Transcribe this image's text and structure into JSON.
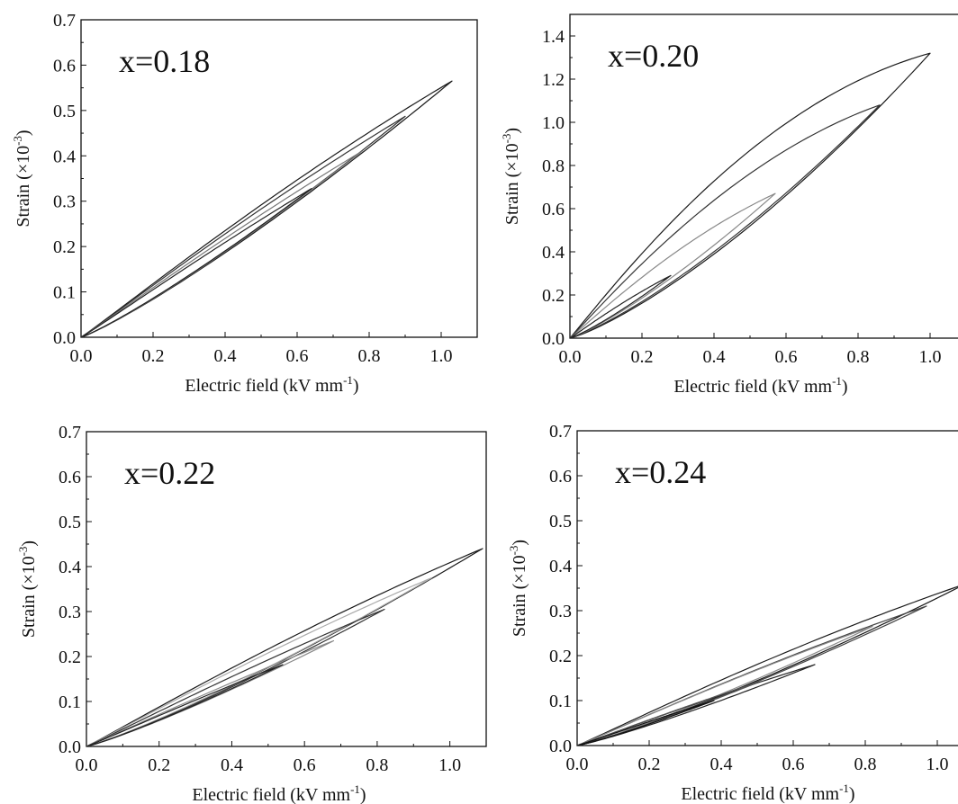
{
  "figure": {
    "xlabel": "Electric field (kV mm",
    "xlabel_sup": "-1",
    "xlabel_tail": ")",
    "ylabel": "Strain (×10",
    "ylabel_sup": "-3",
    "ylabel_tail": ")"
  },
  "chart_data": [
    {
      "type": "line",
      "annotation": "x=0.18",
      "xlim": [
        0,
        1.1
      ],
      "ylim": [
        0,
        0.7
      ],
      "xticks": [
        "0.0",
        "0.2",
        "0.4",
        "0.6",
        "0.8",
        "1.0"
      ],
      "yticks": [
        "0.0",
        "0.1",
        "0.2",
        "0.3",
        "0.4",
        "0.5",
        "0.6",
        "0.7"
      ],
      "loops": [
        {
          "emax": 1.03,
          "smax": 0.565,
          "w": 0.03,
          "color": "#1a1a1a"
        },
        {
          "emax": 0.9,
          "smax": 0.487,
          "w": 0.026,
          "color": "#333333"
        },
        {
          "emax": 0.78,
          "smax": 0.41,
          "w": 0.022,
          "color": "#777777"
        },
        {
          "emax": 0.64,
          "smax": 0.328,
          "w": 0.018,
          "color": "#222222"
        }
      ]
    },
    {
      "type": "line",
      "annotation": "x=0.20",
      "xlim": [
        0,
        1.1
      ],
      "ylim": [
        0,
        1.5
      ],
      "xticks": [
        "0.0",
        "0.2",
        "0.4",
        "0.6",
        "0.8",
        "1.0"
      ],
      "yticks": [
        "0.0",
        "0.2",
        "0.4",
        "0.6",
        "0.8",
        "1.0",
        "1.2",
        "1.4"
      ],
      "loops": [
        {
          "emax": 1.0,
          "smax": 1.32,
          "w": 0.11,
          "color": "#1a1a1a"
        },
        {
          "emax": 0.86,
          "smax": 1.08,
          "w": 0.09,
          "color": "#333333"
        },
        {
          "emax": 0.57,
          "smax": 0.67,
          "w": 0.06,
          "color": "#888888"
        },
        {
          "emax": 0.28,
          "smax": 0.29,
          "w": 0.035,
          "color": "#222222"
        }
      ]
    },
    {
      "type": "line",
      "annotation": "x=0.22",
      "xlim": [
        0,
        1.1
      ],
      "ylim": [
        0,
        0.7
      ],
      "xticks": [
        "0.0",
        "0.2",
        "0.4",
        "0.6",
        "0.8",
        "1.0"
      ],
      "yticks": [
        "0.0",
        "0.1",
        "0.2",
        "0.3",
        "0.4",
        "0.5",
        "0.6",
        "0.7"
      ],
      "loops": [
        {
          "emax": 1.09,
          "smax": 0.44,
          "w": 0.032,
          "color": "#1a1a1a"
        },
        {
          "emax": 0.95,
          "smax": 0.375,
          "w": 0.028,
          "color": "#aaaaaa"
        },
        {
          "emax": 0.82,
          "smax": 0.305,
          "w": 0.024,
          "color": "#333333"
        },
        {
          "emax": 0.68,
          "smax": 0.235,
          "w": 0.02,
          "color": "#888888"
        },
        {
          "emax": 0.54,
          "smax": 0.182,
          "w": 0.016,
          "color": "#222222"
        }
      ]
    },
    {
      "type": "line",
      "annotation": "x=0.24",
      "xlim": [
        0,
        1.1
      ],
      "ylim": [
        0,
        0.7
      ],
      "xticks": [
        "0.0",
        "0.2",
        "0.4",
        "0.6",
        "0.8",
        "1.0"
      ],
      "yticks": [
        "0.0",
        "0.1",
        "0.2",
        "0.3",
        "0.4",
        "0.5",
        "0.6",
        "0.7"
      ],
      "loops": [
        {
          "emax": 1.08,
          "smax": 0.36,
          "w": 0.035,
          "color": "#1a1a1a"
        },
        {
          "emax": 0.97,
          "smax": 0.31,
          "w": 0.03,
          "color": "#444444"
        },
        {
          "emax": 0.82,
          "smax": 0.265,
          "w": 0.026,
          "color": "#888888"
        },
        {
          "emax": 0.66,
          "smax": 0.18,
          "w": 0.022,
          "color": "#222222"
        },
        {
          "emax": 0.5,
          "smax": 0.14,
          "w": 0.018,
          "color": "#555555"
        },
        {
          "emax": 0.38,
          "smax": 0.1,
          "w": 0.014,
          "color": "#111111"
        }
      ]
    }
  ]
}
